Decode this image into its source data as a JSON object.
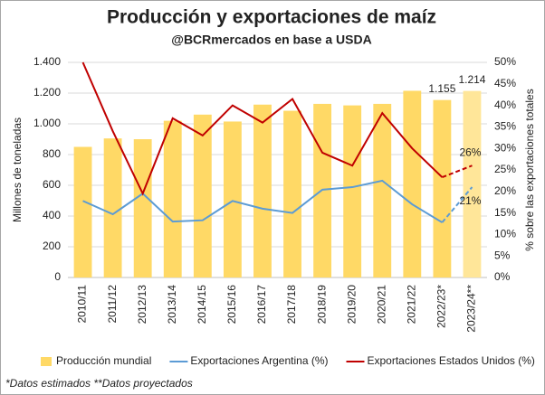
{
  "chart_data": {
    "type": "bar-line",
    "title": "Producción y exportaciones de maíz",
    "subtitle": "@BCRmercados en base a USDA",
    "footnote": "*Datos estimados **Datos proyectados",
    "y_label": "Millones de toneladas",
    "y2_label": "% sobre las exportaciones totales",
    "categories": [
      "2010/11",
      "2011/12",
      "2012/13",
      "2013/14",
      "2014/15",
      "2015/16",
      "2016/17",
      "2017/18",
      "2018/19",
      "2019/20",
      "2020/21",
      "2021/22",
      "2022/23*",
      "2023/24**"
    ],
    "projected_from": 12,
    "series": [
      {
        "name": "Producción mundial",
        "kind": "bar",
        "colors": [
          "#ffd966",
          "#ffd966",
          "#ffd966",
          "#ffd966",
          "#ffd966",
          "#ffd966",
          "#ffd966",
          "#ffd966",
          "#ffd966",
          "#ffd966",
          "#ffd966",
          "#ffd966",
          "#ffd966",
          "#ffe699"
        ],
        "values": [
          850,
          905,
          900,
          1020,
          1060,
          1015,
          1125,
          1085,
          1130,
          1120,
          1130,
          1215,
          1155,
          1214
        ],
        "value_labels": [
          null,
          null,
          null,
          null,
          null,
          null,
          null,
          null,
          null,
          null,
          null,
          null,
          "1.155",
          "1.214"
        ]
      },
      {
        "name": "Exportaciones Argentina (%)",
        "kind": "line",
        "axis": "y2",
        "color": "#5b9bd5",
        "values": [
          17.8,
          14.7,
          19.5,
          13,
          13.3,
          17.8,
          16,
          15,
          20.4,
          21,
          22.5,
          17,
          12.8,
          21
        ],
        "value_labels": [
          null,
          null,
          null,
          null,
          null,
          null,
          null,
          null,
          null,
          null,
          null,
          null,
          null,
          "21%"
        ]
      },
      {
        "name": "Exportaciones Estados Unidos (%)",
        "kind": "line",
        "axis": "y2",
        "color": "#c00000",
        "values": [
          50,
          34,
          19.5,
          37,
          33,
          40,
          36,
          41.5,
          29,
          26,
          38.2,
          30,
          23.3,
          26
        ],
        "value_labels": [
          null,
          null,
          null,
          null,
          null,
          null,
          null,
          null,
          null,
          null,
          null,
          null,
          null,
          "26%"
        ]
      }
    ],
    "ylim": [
      0,
      1400
    ],
    "yticks": [
      0,
      200,
      400,
      600,
      800,
      {
        "value": 1000,
        "label": "1.000"
      },
      {
        "value": 1200,
        "label": "1.200"
      },
      {
        "value": 1400,
        "label": "1.400"
      }
    ],
    "y2lim": [
      0,
      50
    ],
    "y2ticks": [
      {
        "value": 0,
        "label": "0%"
      },
      {
        "value": 5,
        "label": "5%"
      },
      {
        "value": 10,
        "label": "10%"
      },
      {
        "value": 15,
        "label": "15%"
      },
      {
        "value": 20,
        "label": "20%"
      },
      {
        "value": 25,
        "label": "25%"
      },
      {
        "value": 30,
        "label": "30%"
      },
      {
        "value": 35,
        "label": "35%"
      },
      {
        "value": 40,
        "label": "40%"
      },
      {
        "value": 45,
        "label": "45%"
      },
      {
        "value": 50,
        "label": "50%"
      }
    ],
    "grid": true
  }
}
